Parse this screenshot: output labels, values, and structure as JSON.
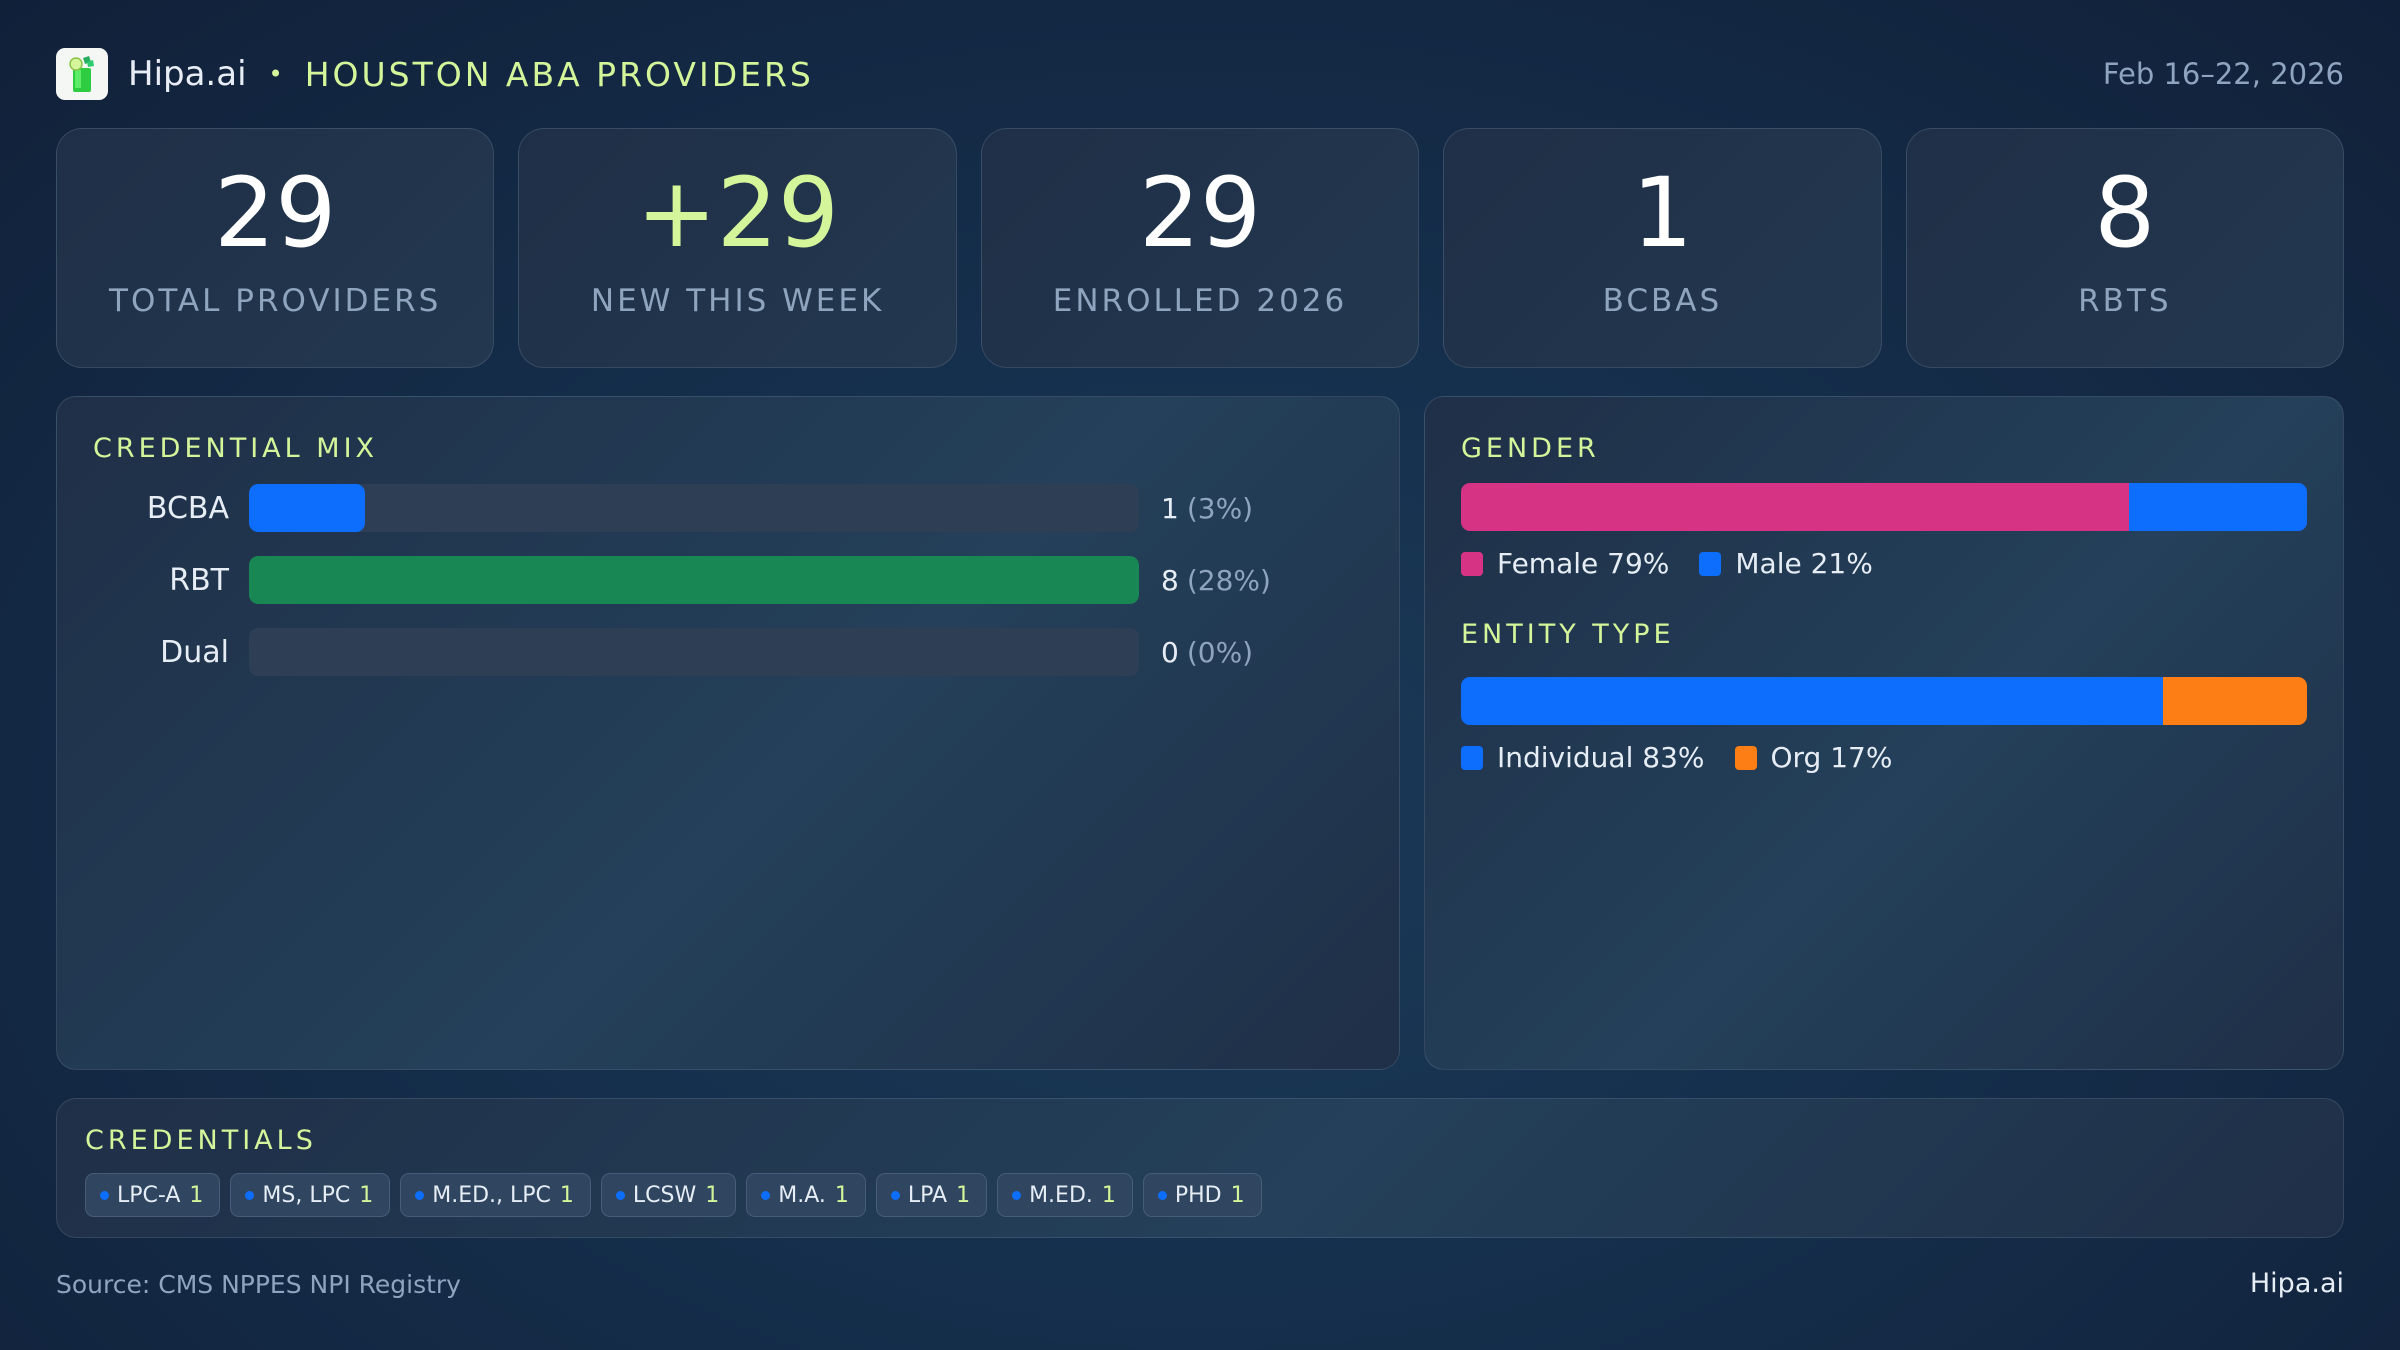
{
  "header": {
    "brand": "Hipa.ai",
    "separator": "•",
    "title": "HOUSTON ABA PROVIDERS",
    "date_range": "Feb 16–22, 2026",
    "logo_icon": "mojito-glass-icon"
  },
  "kpis": [
    {
      "value": "29",
      "label": "TOTAL PROVIDERS"
    },
    {
      "value": "+29",
      "label": "NEW THIS WEEK"
    },
    {
      "value": "29",
      "label": "ENROLLED 2026"
    },
    {
      "value": "1",
      "label": "BCBAS"
    },
    {
      "value": "8",
      "label": "RBTS"
    }
  ],
  "credential_mix": {
    "title": "CREDENTIAL MIX",
    "rows": [
      {
        "label": "BCBA",
        "count": "1",
        "pct": "(3%)",
        "fill_pct": 13,
        "color": "#0d6efd"
      },
      {
        "label": "RBT",
        "count": "8",
        "pct": "(28%)",
        "fill_pct": 100,
        "color": "#198754"
      },
      {
        "label": "Dual",
        "count": "0",
        "pct": "(0%)",
        "fill_pct": 0,
        "color": "#0d6efd"
      }
    ]
  },
  "gender": {
    "title": "GENDER",
    "segments": [
      {
        "label": "Female 79%",
        "pct": 79,
        "color": "#d63384"
      },
      {
        "label": "Male 21%",
        "pct": 21,
        "color": "#0d6efd"
      }
    ]
  },
  "entity_type": {
    "title": "ENTITY TYPE",
    "segments": [
      {
        "label": "Individual 83%",
        "pct": 83,
        "color": "#0d6efd"
      },
      {
        "label": "Org 17%",
        "pct": 17,
        "color": "#fd7e14"
      }
    ]
  },
  "credentials": {
    "title": "CREDENTIALS",
    "chips": [
      {
        "label": "LPC-A",
        "count": "1"
      },
      {
        "label": "MS, LPC",
        "count": "1"
      },
      {
        "label": "M.ED., LPC",
        "count": "1"
      },
      {
        "label": "LCSW",
        "count": "1"
      },
      {
        "label": "M.A.",
        "count": "1"
      },
      {
        "label": "LPA",
        "count": "1"
      },
      {
        "label": "M.ED.",
        "count": "1"
      },
      {
        "label": "PHD",
        "count": "1"
      }
    ]
  },
  "footer": {
    "source": "Source: CMS NPPES NPI Registry",
    "brand": "Hipa.ai"
  },
  "colors": {
    "accent": "#d4f59a",
    "blue": "#0d6efd",
    "green": "#198754",
    "pink": "#d63384",
    "orange": "#fd7e14",
    "muted": "#8fa4bf"
  },
  "chart_data": [
    {
      "type": "bar",
      "title": "CREDENTIAL MIX",
      "categories": [
        "BCBA",
        "RBT",
        "Dual"
      ],
      "values": [
        1,
        8,
        0
      ],
      "percentages": [
        3,
        28,
        0
      ],
      "orientation": "horizontal"
    },
    {
      "type": "bar",
      "title": "GENDER",
      "stacked": true,
      "categories": [
        "Female",
        "Male"
      ],
      "values": [
        79,
        21
      ],
      "unit": "%"
    },
    {
      "type": "bar",
      "title": "ENTITY TYPE",
      "stacked": true,
      "categories": [
        "Individual",
        "Org"
      ],
      "values": [
        83,
        17
      ],
      "unit": "%"
    }
  ]
}
